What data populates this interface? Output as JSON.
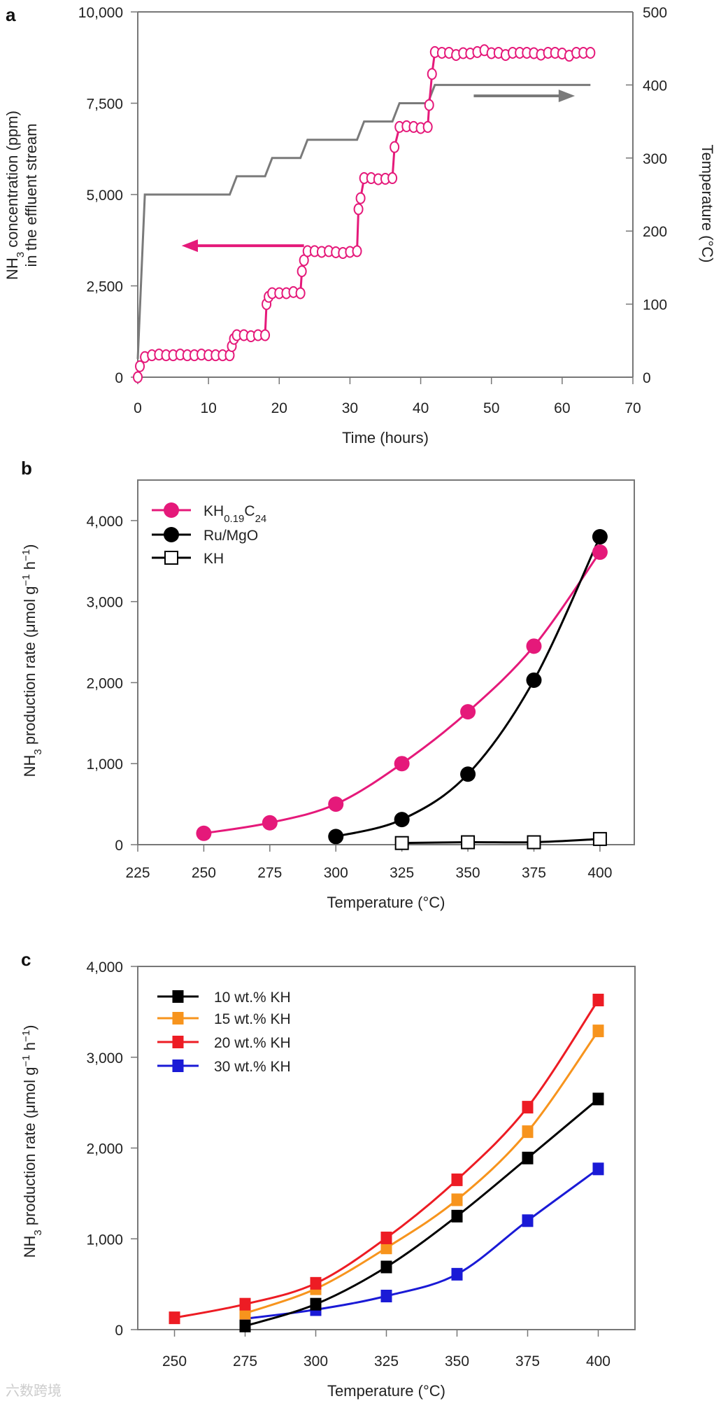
{
  "chart_data": [
    {
      "panel": "a",
      "type": "line",
      "xlabel": "Time (hours)",
      "ylabel": {
        "line1_pre": "NH",
        "line1_sub": "3",
        "line1_post": " concentration (ppm)",
        "line2": "in the effluent stream"
      },
      "y2label": "Temperature (°C)",
      "xlim": [
        0,
        70
      ],
      "ylim": [
        0,
        10000
      ],
      "y2lim": [
        0,
        500
      ],
      "xticks": [
        "0",
        "10",
        "20",
        "30",
        "40",
        "50",
        "60",
        "70"
      ],
      "yticks": [
        "0",
        "2,500",
        "5,000",
        "7,500",
        "10,000"
      ],
      "y2ticks": [
        "0",
        "100",
        "200",
        "300",
        "400",
        "500"
      ],
      "series": [
        {
          "name": "NH3 concentration",
          "axis": "left",
          "color": "#e5197a",
          "marker": "open-circle",
          "x": [
            0,
            0.3,
            1,
            2,
            3,
            4,
            5,
            6,
            7,
            8,
            9,
            10,
            11,
            12,
            13,
            13.3,
            13.6,
            14,
            15,
            16,
            17,
            18,
            18.2,
            18.5,
            19,
            20,
            21,
            22,
            23,
            23.2,
            23.5,
            24,
            25,
            26,
            27,
            28,
            29,
            30,
            31,
            31.2,
            31.5,
            32,
            33,
            34,
            35,
            36,
            36.3,
            37,
            38,
            39,
            40,
            41,
            41.2,
            41.6,
            42,
            43,
            44,
            45,
            46,
            47,
            48,
            49,
            50,
            51,
            52,
            53,
            54,
            55,
            56,
            57,
            58,
            59,
            60,
            61,
            62,
            63,
            64
          ],
          "y": [
            0,
            300,
            550,
            600,
            620,
            600,
            600,
            620,
            600,
            600,
            620,
            600,
            600,
            600,
            600,
            850,
            1050,
            1150,
            1150,
            1120,
            1150,
            1150,
            2000,
            2200,
            2300,
            2300,
            2300,
            2330,
            2300,
            2900,
            3200,
            3450,
            3450,
            3430,
            3450,
            3420,
            3400,
            3430,
            3450,
            4600,
            4900,
            5450,
            5450,
            5420,
            5430,
            5450,
            6300,
            6850,
            6870,
            6850,
            6820,
            6850,
            7450,
            8300,
            8900,
            8880,
            8880,
            8820,
            8870,
            8860,
            8900,
            8950,
            8870,
            8880,
            8820,
            8880,
            8880,
            8880,
            8870,
            8830,
            8880,
            8880,
            8860,
            8800,
            8880,
            8880,
            8880
          ],
          "arrow": "left"
        },
        {
          "name": "Temperature",
          "axis": "right",
          "color": "#7a7a7a",
          "marker": "none",
          "x": [
            0,
            1,
            13,
            14,
            18,
            19,
            23,
            24,
            31,
            32,
            36,
            37,
            41,
            42,
            64
          ],
          "y": [
            25,
            250,
            250,
            275,
            275,
            300,
            300,
            325,
            325,
            350,
            350,
            375,
            375,
            400,
            400
          ],
          "arrow": "right"
        }
      ]
    },
    {
      "panel": "b",
      "type": "line",
      "xlabel": "Temperature (°C)",
      "ylabel": {
        "pre": "NH",
        "sub": "3",
        "post": " production rate (μmol g",
        "sup1": "−1",
        "mid": " h",
        "sup2": "−1",
        "end": ")"
      },
      "xlim": [
        225,
        413
      ],
      "ylim": [
        0,
        4500
      ],
      "xticks": [
        "225",
        "250",
        "275",
        "300",
        "325",
        "350",
        "375",
        "400"
      ],
      "yticks": [
        "0",
        "1,000",
        "2,000",
        "3,000",
        "4,000"
      ],
      "legend_position": "top-left",
      "series": [
        {
          "name": "KH0.19C24",
          "label_parts": [
            "KH",
            "0.19",
            "C",
            "24"
          ],
          "color": "#e5197a",
          "marker": "filled-circle",
          "x": [
            250,
            275,
            300,
            325,
            350,
            375,
            400
          ],
          "y": [
            140,
            270,
            500,
            1000,
            1640,
            2450,
            3610
          ]
        },
        {
          "name": "Ru/MgO",
          "label_parts": [
            "Ru/MgO"
          ],
          "color": "#000000",
          "marker": "filled-circle",
          "x": [
            300,
            325,
            350,
            375,
            400
          ],
          "y": [
            100,
            310,
            870,
            2030,
            3800
          ]
        },
        {
          "name": "KH",
          "label_parts": [
            "KH"
          ],
          "color": "#000000",
          "marker": "open-square",
          "x": [
            325,
            350,
            375,
            400
          ],
          "y": [
            20,
            30,
            30,
            70
          ]
        }
      ]
    },
    {
      "panel": "c",
      "type": "line",
      "xlabel": "Temperature (°C)",
      "ylabel": {
        "pre": "NH",
        "sub": "3",
        "post": " production rate (μmol g",
        "sup1": "−1",
        "mid": " h",
        "sup2": "−1",
        "end": ")"
      },
      "xlim": [
        237,
        413
      ],
      "ylim": [
        0,
        4000
      ],
      "xticks": [
        "250",
        "275",
        "300",
        "325",
        "350",
        "375",
        "400"
      ],
      "yticks": [
        "0",
        "1,000",
        "2,000",
        "3,000",
        "4,000"
      ],
      "legend_position": "top-left",
      "series": [
        {
          "name": "10 wt.% KH",
          "color": "#000000",
          "marker": "filled-square",
          "x": [
            275,
            300,
            325,
            350,
            375,
            400
          ],
          "y": [
            40,
            280,
            690,
            1250,
            1890,
            2540
          ]
        },
        {
          "name": "15 wt.% KH",
          "color": "#f7941d",
          "marker": "filled-square",
          "x": [
            275,
            300,
            325,
            350,
            375,
            400
          ],
          "y": [
            180,
            450,
            900,
            1430,
            2180,
            3290
          ]
        },
        {
          "name": "20 wt.% KH",
          "color": "#ed1c24",
          "marker": "filled-square",
          "x": [
            250,
            275,
            300,
            325,
            350,
            375,
            400
          ],
          "y": [
            130,
            280,
            510,
            1010,
            1650,
            2450,
            3630
          ]
        },
        {
          "name": "30 wt.% KH",
          "color": "#1a1ad6",
          "marker": "filled-square",
          "x": [
            275,
            300,
            325,
            350,
            375,
            400
          ],
          "y": [
            120,
            220,
            370,
            610,
            1200,
            1770
          ]
        }
      ]
    }
  ],
  "watermark": "六数跨境"
}
